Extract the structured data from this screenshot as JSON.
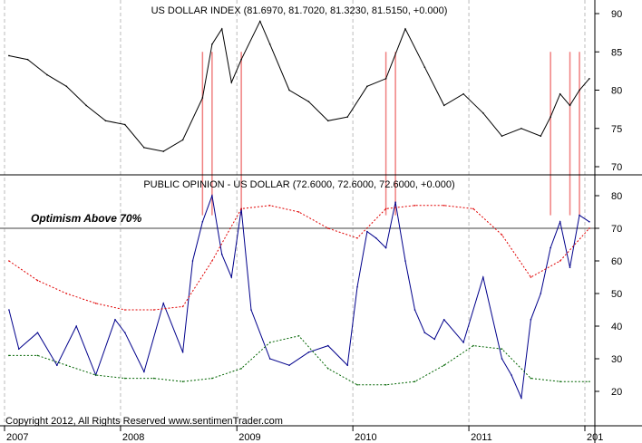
{
  "chart_data": [
    {
      "type": "line",
      "title": "US DOLLAR INDEX (81.6970, 81.7020, 81.3230, 81.5150, +0.000)",
      "ylim": [
        68,
        92
      ],
      "yticks": [
        70,
        75,
        80,
        85,
        90
      ],
      "series": [
        {
          "color": "#000000",
          "x": [
            "2007-01",
            "2007-03",
            "2007-05",
            "2007-07",
            "2007-09",
            "2007-11",
            "2008-01",
            "2008-03",
            "2008-05",
            "2008-07",
            "2008-09",
            "2008-10",
            "2008-11",
            "2008-12",
            "2009-01",
            "2009-03",
            "2009-04",
            "2009-06",
            "2009-08",
            "2009-10",
            "2009-12",
            "2010-02",
            "2010-04",
            "2010-06",
            "2010-08",
            "2010-10",
            "2010-12",
            "2011-02",
            "2011-04",
            "2011-06",
            "2011-08",
            "2011-09",
            "2011-10",
            "2011-11",
            "2011-12",
            "2012-01"
          ],
          "values": [
            84.5,
            84.0,
            82.0,
            80.5,
            78.0,
            76.0,
            75.5,
            72.5,
            72.0,
            73.5,
            79.0,
            86.0,
            88.0,
            81.0,
            84.0,
            89.0,
            86.0,
            80.0,
            78.5,
            76.0,
            76.5,
            80.5,
            81.5,
            88.0,
            83.0,
            78.0,
            79.5,
            77.0,
            74.0,
            75.0,
            74.0,
            76.5,
            79.5,
            78.0,
            80.0,
            81.5
          ]
        }
      ],
      "annotations": [
        {
          "type": "vline",
          "color": "#f08080",
          "x": [
            "2008-09",
            "2008-10",
            "2009-01",
            "2010-04",
            "2010-05",
            "2011-09",
            "2011-11",
            "2011-12"
          ]
        }
      ]
    },
    {
      "type": "line",
      "title": "PUBLIC OPINION - US DOLLAR (72.6000, 72.6000, 72.6000, +0.000)",
      "annotation_text": "Optimism Above 70%",
      "ylim": [
        10,
        85
      ],
      "yticks": [
        20,
        30,
        40,
        50,
        60,
        70,
        80
      ],
      "reference_line": 70,
      "xticks": [
        "2007",
        "2008",
        "2009",
        "2010",
        "2011",
        "201"
      ],
      "series": [
        {
          "color": "#00008b",
          "x": [
            "2007-01",
            "2007-02",
            "2007-04",
            "2007-06",
            "2007-08",
            "2007-10",
            "2007-12",
            "2008-01",
            "2008-03",
            "2008-05",
            "2008-07",
            "2008-08",
            "2008-09",
            "2008-10",
            "2008-11",
            "2008-12",
            "2009-01",
            "2009-02",
            "2009-04",
            "2009-06",
            "2009-08",
            "2009-10",
            "2009-12",
            "2010-01",
            "2010-02",
            "2010-03",
            "2010-04",
            "2010-05",
            "2010-06",
            "2010-07",
            "2010-08",
            "2010-09",
            "2010-10",
            "2010-12",
            "2011-02",
            "2011-04",
            "2011-05",
            "2011-06",
            "2011-07",
            "2011-08",
            "2011-09",
            "2011-10",
            "2011-11",
            "2011-12",
            "2012-01"
          ],
          "values": [
            45,
            33,
            38,
            28,
            40,
            25,
            42,
            38,
            26,
            47,
            32,
            60,
            72,
            80,
            62,
            55,
            76,
            45,
            30,
            28,
            32,
            34,
            28,
            52,
            69,
            67,
            64,
            78,
            60,
            45,
            38,
            36,
            42,
            35,
            55,
            30,
            25,
            18,
            42,
            50,
            64,
            72,
            58,
            74,
            72
          ]
        },
        {
          "color": "#e00000",
          "dashed": true,
          "x": [
            "2007-01",
            "2007-04",
            "2007-07",
            "2007-10",
            "2008-01",
            "2008-04",
            "2008-07",
            "2008-10",
            "2009-01",
            "2009-04",
            "2009-07",
            "2009-10",
            "2010-01",
            "2010-04",
            "2010-07",
            "2010-10",
            "2011-01",
            "2011-04",
            "2011-07",
            "2011-10",
            "2012-01"
          ],
          "values": [
            60,
            54,
            50,
            47,
            45,
            45,
            46,
            60,
            76,
            77,
            75,
            70,
            67,
            76,
            77,
            77,
            76,
            68,
            55,
            60,
            70
          ]
        },
        {
          "color": "#006400",
          "dashed": true,
          "x": [
            "2007-01",
            "2007-04",
            "2007-07",
            "2007-10",
            "2008-01",
            "2008-04",
            "2008-07",
            "2008-10",
            "2009-01",
            "2009-04",
            "2009-07",
            "2009-10",
            "2010-01",
            "2010-04",
            "2010-07",
            "2010-10",
            "2011-01",
            "2011-04",
            "2011-07",
            "2011-10",
            "2012-01"
          ],
          "values": [
            31,
            31,
            28,
            25,
            24,
            24,
            23,
            24,
            27,
            35,
            37,
            27,
            22,
            22,
            23,
            28,
            34,
            33,
            24,
            23,
            23
          ]
        }
      ]
    }
  ],
  "copyright": "Copyright 2012, All Rights Reserved  www.sentimenTrader.com"
}
